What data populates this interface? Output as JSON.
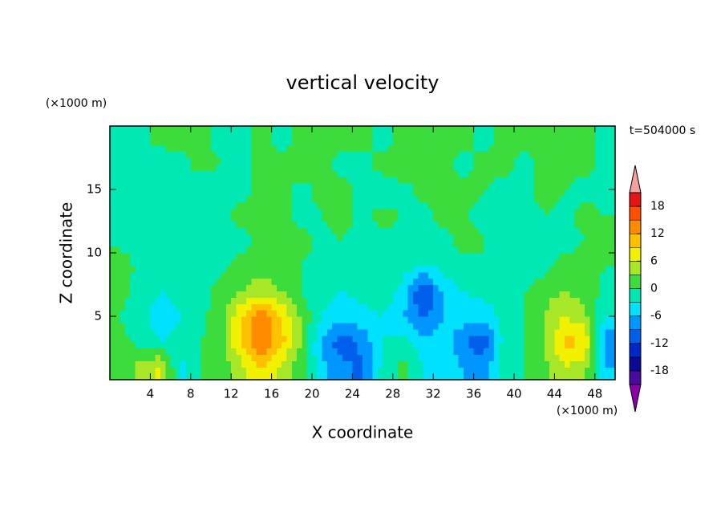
{
  "chart_data": {
    "type": "contour",
    "title": "vertical velocity",
    "x_label": "X coordinate",
    "y_label": "Z coordinate",
    "x_unit": "(×1000 m)",
    "y_unit": "(×1000 m)",
    "annotation": "t=504000 s",
    "xlim": [
      0,
      50
    ],
    "ylim": [
      0,
      20
    ],
    "xticks": [
      4,
      8,
      12,
      16,
      20,
      24,
      28,
      32,
      36,
      40,
      44,
      48
    ],
    "yticks": [
      5,
      10,
      15
    ],
    "x": [
      1,
      3,
      5,
      7,
      9,
      11,
      13,
      15,
      17,
      19,
      21,
      23,
      25,
      27,
      29,
      31,
      33,
      35,
      37,
      39,
      41,
      43,
      45,
      47,
      49
    ],
    "y": [
      1,
      3,
      5,
      7,
      9,
      11,
      13,
      15,
      17,
      19
    ],
    "z": [
      [
        1,
        4,
        7,
        -4,
        0,
        1,
        5,
        9,
        5,
        1,
        -5,
        -8,
        -10,
        -2,
        1,
        -3,
        -4,
        -6,
        -8,
        -1,
        0,
        2,
        6,
        4,
        -6
      ],
      [
        1,
        -1,
        -3,
        -2,
        0,
        2,
        9,
        15,
        10,
        3,
        -7,
        -11,
        -8,
        -3,
        -2,
        -5,
        -4,
        -9,
        -11,
        -2,
        0,
        3,
        10,
        9,
        -8
      ],
      [
        0,
        -2,
        -5,
        -3,
        -1,
        2,
        9,
        14,
        9,
        2,
        -3,
        -5,
        -4,
        -3,
        -6,
        -10,
        -6,
        -4,
        -5,
        -2,
        0,
        3,
        6,
        4,
        -3
      ],
      [
        1,
        -1,
        -3,
        -2,
        -1,
        1,
        3,
        5,
        3,
        0,
        -2,
        -3,
        -2,
        -1,
        -4,
        -13,
        -5,
        -3,
        -2,
        -1,
        0,
        2,
        3,
        2,
        -1
      ],
      [
        2,
        -1,
        -2,
        -2,
        -2,
        -1,
        1,
        2,
        1,
        0,
        -1,
        -2,
        -2,
        -1,
        -2,
        -3,
        -2,
        -1,
        0,
        -1,
        -2,
        -1,
        1,
        1,
        0
      ],
      [
        -1,
        -2,
        -2,
        -2,
        -3,
        -2,
        -1,
        1,
        0,
        1,
        -1,
        0,
        -1,
        -1,
        -1,
        -2,
        -1,
        1,
        0,
        -1,
        -2,
        -2,
        -1,
        0,
        1
      ],
      [
        -1,
        -1,
        -2,
        -1,
        -1,
        -1,
        1,
        0,
        1,
        -1,
        0,
        1,
        -1,
        1,
        0,
        -1,
        1,
        0,
        -1,
        -2,
        -1,
        0,
        -1,
        1,
        0
      ],
      [
        -1,
        -2,
        -2,
        -1,
        -2,
        -1,
        -1,
        1,
        1,
        -1,
        1,
        1,
        -1,
        -2,
        -1,
        1,
        2,
        1,
        0,
        -1,
        -1,
        1,
        0,
        -1,
        -1
      ],
      [
        -1,
        -1,
        -2,
        -1,
        1,
        0,
        -1,
        1,
        1,
        2,
        1,
        -1,
        -1,
        1,
        2,
        1,
        1,
        -1,
        1,
        1,
        -1,
        1,
        1,
        1,
        -1
      ],
      [
        -1,
        -1,
        1,
        1,
        1,
        -1,
        -1,
        1,
        -1,
        1,
        1,
        1,
        1,
        -1,
        1,
        1,
        1,
        1,
        -1,
        1,
        1,
        1,
        1,
        1,
        -1
      ]
    ],
    "levels": [
      -21,
      -18,
      -15,
      -12,
      -9,
      -6,
      -3,
      0,
      3,
      6,
      9,
      12,
      15,
      18,
      21
    ],
    "colors": [
      "#8c00a8",
      "#4a0a9c",
      "#0a0a96",
      "#0028c8",
      "#0060ec",
      "#0096ff",
      "#00e0ff",
      "#00e8b4",
      "#3cdc3c",
      "#a8e628",
      "#f0f000",
      "#ffc000",
      "#ff8c00",
      "#ff5000",
      "#e61414",
      "#f4a0a0"
    ],
    "colorbar_ticks": [
      -18,
      -12,
      -6,
      0,
      6,
      12,
      18
    ]
  }
}
